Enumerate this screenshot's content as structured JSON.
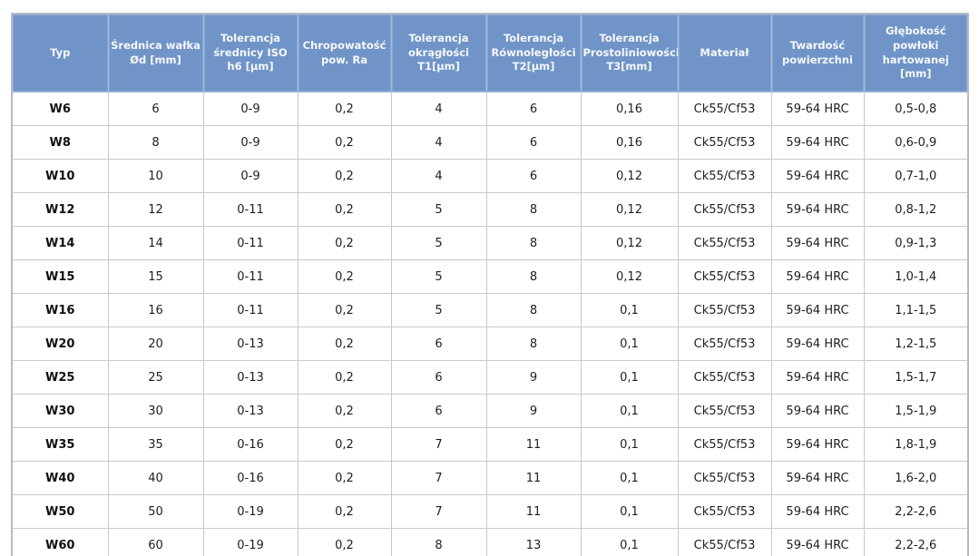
{
  "chart_data": {
    "type": "table",
    "title": "",
    "columns": [
      "Typ",
      "Średnica wałka\nØd [mm]",
      "Tolerancja\nśrednicy ISO\nh6 [µm]",
      "Chropowatość\npow. Ra",
      "Tolerancja\nokrągłości\nT1[µm]",
      "Tolerancja\nRównoległości\nT2[µm]",
      "Tolerancja\nProstoliniowości\nT3[mm]",
      "Materiał",
      "Twardość\npowierzchni",
      "Głębokość\npowłoki\nhartowanej\n[mm]"
    ],
    "rows": [
      [
        "W6",
        "6",
        "0-9",
        "0,2",
        "4",
        "6",
        "0,16",
        "Ck55/Cf53",
        "59-64 HRC",
        "0,5-0,8"
      ],
      [
        "W8",
        "8",
        "0-9",
        "0,2",
        "4",
        "6",
        "0,16",
        "Ck55/Cf53",
        "59-64 HRC",
        "0,6-0,9"
      ],
      [
        "W10",
        "10",
        "0-9",
        "0,2",
        "4",
        "6",
        "0,12",
        "Ck55/Cf53",
        "59-64 HRC",
        "0,7-1,0"
      ],
      [
        "W12",
        "12",
        "0-11",
        "0,2",
        "5",
        "8",
        "0,12",
        "Ck55/Cf53",
        "59-64 HRC",
        "0,8-1,2"
      ],
      [
        "W14",
        "14",
        "0-11",
        "0,2",
        "5",
        "8",
        "0,12",
        "Ck55/Cf53",
        "59-64 HRC",
        "0,9-1,3"
      ],
      [
        "W15",
        "15",
        "0-11",
        "0,2",
        "5",
        "8",
        "0,12",
        "Ck55/Cf53",
        "59-64 HRC",
        "1,0-1,4"
      ],
      [
        "W16",
        "16",
        "0-11",
        "0,2",
        "5",
        "8",
        "0,1",
        "Ck55/Cf53",
        "59-64 HRC",
        "1,1-1,5"
      ],
      [
        "W20",
        "20",
        "0-13",
        "0,2",
        "6",
        "8",
        "0,1",
        "Ck55/Cf53",
        "59-64 HRC",
        "1,2-1,5"
      ],
      [
        "W25",
        "25",
        "0-13",
        "0,2",
        "6",
        "9",
        "0,1",
        "Ck55/Cf53",
        "59-64 HRC",
        "1,5-1,7"
      ],
      [
        "W30",
        "30",
        "0-13",
        "0,2",
        "6",
        "9",
        "0,1",
        "Ck55/Cf53",
        "59-64 HRC",
        "1,5-1,9"
      ],
      [
        "W35",
        "35",
        "0-16",
        "0,2",
        "7",
        "11",
        "0,1",
        "Ck55/Cf53",
        "59-64 HRC",
        "1,8-1,9"
      ],
      [
        "W40",
        "40",
        "0-16",
        "0,2",
        "7",
        "11",
        "0,1",
        "Ck55/Cf53",
        "59-64 HRC",
        "1,6-2,0"
      ],
      [
        "W50",
        "50",
        "0-19",
        "0,2",
        "7",
        "11",
        "0,1",
        "Ck55/Cf53",
        "59-64 HRC",
        "2,2-2,6"
      ],
      [
        "W60",
        "60",
        "0-19",
        "0,2",
        "8",
        "13",
        "0,1",
        "Ck55/Cf53",
        "59-64 HRC",
        "2,2-2,6"
      ]
    ],
    "legend": "none",
    "grid": "on",
    "colors": {
      "header_bg": "#7094c7",
      "header_text": "#f5f8fc",
      "header_border": "#9db8da",
      "body_border": "#c9c9c9",
      "outer_border": "#b2bac4",
      "body_text": "#1e1e1e"
    }
  }
}
